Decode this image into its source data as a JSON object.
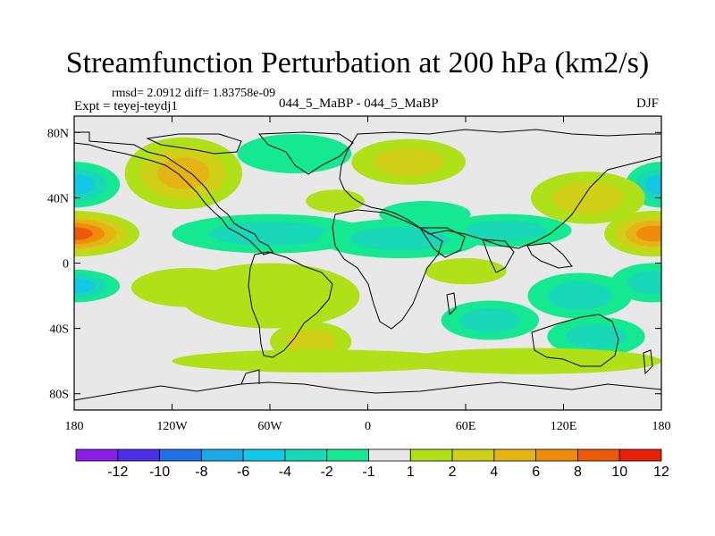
{
  "title": "Streamfunction Perturbation at 200 hPa (km2/s)",
  "stats_line": "rmsd= 2.0912 diff= 1.83758e-09",
  "expt_line": "Expt = teyej-teydj1",
  "cases_line": "044_5_MaBP - 044_5_MaBP",
  "season": "DJF",
  "colors": {
    "bins": [
      "#8a1ee8",
      "#4a2de6",
      "#1f70e8",
      "#1aa8e6",
      "#12c8e4",
      "#18d8b8",
      "#14e890",
      "#e8e8e8",
      "#b0e018",
      "#d0d018",
      "#e4b414",
      "#f08c0c",
      "#ec5a0a",
      "#e8200a"
    ],
    "land_outline": "#000000"
  },
  "chart_data": {
    "type": "filled-contour-map",
    "title": "Streamfunction Perturbation at 200 hPa (km2/s)",
    "x_range": [
      -180,
      180
    ],
    "y_range": [
      -90,
      90
    ],
    "x_ticks": [
      {
        "value": -180,
        "label": "180"
      },
      {
        "value": -120,
        "label": "120W"
      },
      {
        "value": -60,
        "label": "60W"
      },
      {
        "value": 0,
        "label": "0"
      },
      {
        "value": 60,
        "label": "60E"
      },
      {
        "value": 120,
        "label": "120E"
      },
      {
        "value": 180,
        "label": "180"
      }
    ],
    "y_ticks": [
      {
        "value": 80,
        "label": "80N"
      },
      {
        "value": 40,
        "label": "40N"
      },
      {
        "value": 0,
        "label": "0"
      },
      {
        "value": -40,
        "label": "40S"
      },
      {
        "value": -80,
        "label": "80S"
      }
    ],
    "colorbar_labels": [
      "-12",
      "-10",
      "-8",
      "-6",
      "-4",
      "-2",
      "-1",
      "1",
      "2",
      "4",
      "6",
      "8",
      "10",
      "12"
    ],
    "regions": [
      {
        "lon": -180,
        "lat": 18,
        "rlon": 40,
        "rlat": 14,
        "value": 9
      },
      {
        "lon": 175,
        "lat": 18,
        "rlon": 30,
        "rlat": 14,
        "value": 8
      },
      {
        "lon": -180,
        "lat": 48,
        "rlon": 28,
        "rlat": 14,
        "value": -5
      },
      {
        "lon": 180,
        "lat": 48,
        "rlon": 22,
        "rlat": 14,
        "value": -5
      },
      {
        "lon": -180,
        "lat": -14,
        "rlon": 28,
        "rlat": 10,
        "value": -5
      },
      {
        "lon": 175,
        "lat": -12,
        "rlon": 26,
        "rlat": 12,
        "value": -4
      },
      {
        "lon": -113,
        "lat": 55,
        "rlon": 36,
        "rlat": 22,
        "value": 6
      },
      {
        "lon": -45,
        "lat": 67,
        "rlon": 35,
        "rlat": 12,
        "value": -2
      },
      {
        "lon": 25,
        "lat": 62,
        "rlon": 35,
        "rlat": 14,
        "value": 4
      },
      {
        "lon": -20,
        "lat": 38,
        "rlon": 18,
        "rlat": 7,
        "value": 2
      },
      {
        "lon": 35,
        "lat": 30,
        "rlon": 28,
        "rlat": 8,
        "value": -2
      },
      {
        "lon": 135,
        "lat": 40,
        "rlon": 35,
        "rlat": 16,
        "value": 4
      },
      {
        "lon": -60,
        "lat": 18,
        "rlon": 60,
        "rlat": 12,
        "value": -4
      },
      {
        "lon": 20,
        "lat": 15,
        "rlon": 50,
        "rlat": 12,
        "value": -3
      },
      {
        "lon": 85,
        "lat": 20,
        "rlon": 40,
        "rlat": 10,
        "value": -3
      },
      {
        "lon": 130,
        "lat": -20,
        "rlon": 32,
        "rlat": 14,
        "value": -3
      },
      {
        "lon": -60,
        "lat": -20,
        "rlon": 55,
        "rlat": 20,
        "value": 2
      },
      {
        "lon": -35,
        "lat": -48,
        "rlon": 25,
        "rlat": 12,
        "value": 3
      },
      {
        "lon": -110,
        "lat": -15,
        "rlon": 35,
        "rlat": 12,
        "value": 2
      },
      {
        "lon": 60,
        "lat": -5,
        "rlon": 25,
        "rlat": 8,
        "value": 2
      },
      {
        "lon": 75,
        "lat": -35,
        "rlon": 30,
        "rlat": 12,
        "value": -3
      },
      {
        "lon": 140,
        "lat": -45,
        "rlon": 30,
        "rlat": 12,
        "value": -3
      },
      {
        "lon": -30,
        "lat": -60,
        "rlon": 90,
        "rlat": 7,
        "value": 2
      },
      {
        "lon": 100,
        "lat": -60,
        "rlon": 80,
        "rlat": 8,
        "value": 2
      }
    ]
  }
}
